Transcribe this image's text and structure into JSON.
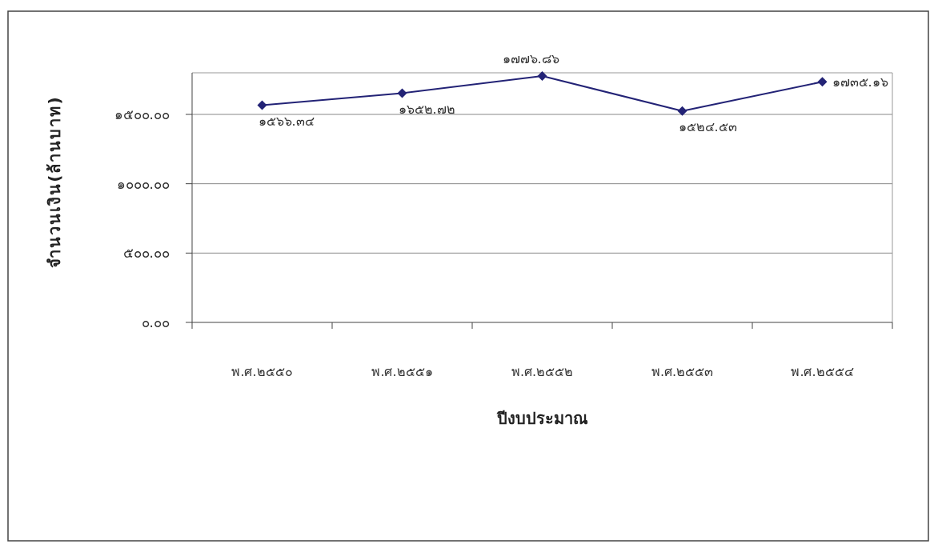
{
  "chart_data": {
    "type": "line",
    "xlabel": "ปีงบประมาณ",
    "ylabel": "จำนวนเงิน(ล้านบาท)",
    "categories": [
      "พ.ศ.๒๕๕๐",
      "พ.ศ.๒๕๕๑",
      "พ.ศ.๒๕๕๒",
      "พ.ศ.๒๕๕๓",
      "พ.ศ.๒๕๕๔"
    ],
    "series": [
      {
        "color": "#232376",
        "values": [
          1566.34,
          1652.72,
          1776.86,
          1524.53,
          1735.16
        ],
        "value_labels": [
          "๑๕๖๖.๓๔",
          "๑๖๕๒.๗๒",
          "๑๗๗๖.๘๖",
          "๑๕๒๔.๕๓",
          "๑๗๓๕.๑๖"
        ]
      }
    ],
    "ylim": [
      0,
      1800
    ],
    "yticks": [
      {
        "value": 0,
        "label": "๐.๐๐"
      },
      {
        "value": 500,
        "label": "๕๐๐.๐๐"
      },
      {
        "value": 1000,
        "label": "๑๐๐๐.๐๐"
      },
      {
        "value": 1500,
        "label": "๑๕๐๐.๐๐"
      }
    ],
    "grid": "y",
    "marker": "diamond",
    "line_style": "solid"
  }
}
